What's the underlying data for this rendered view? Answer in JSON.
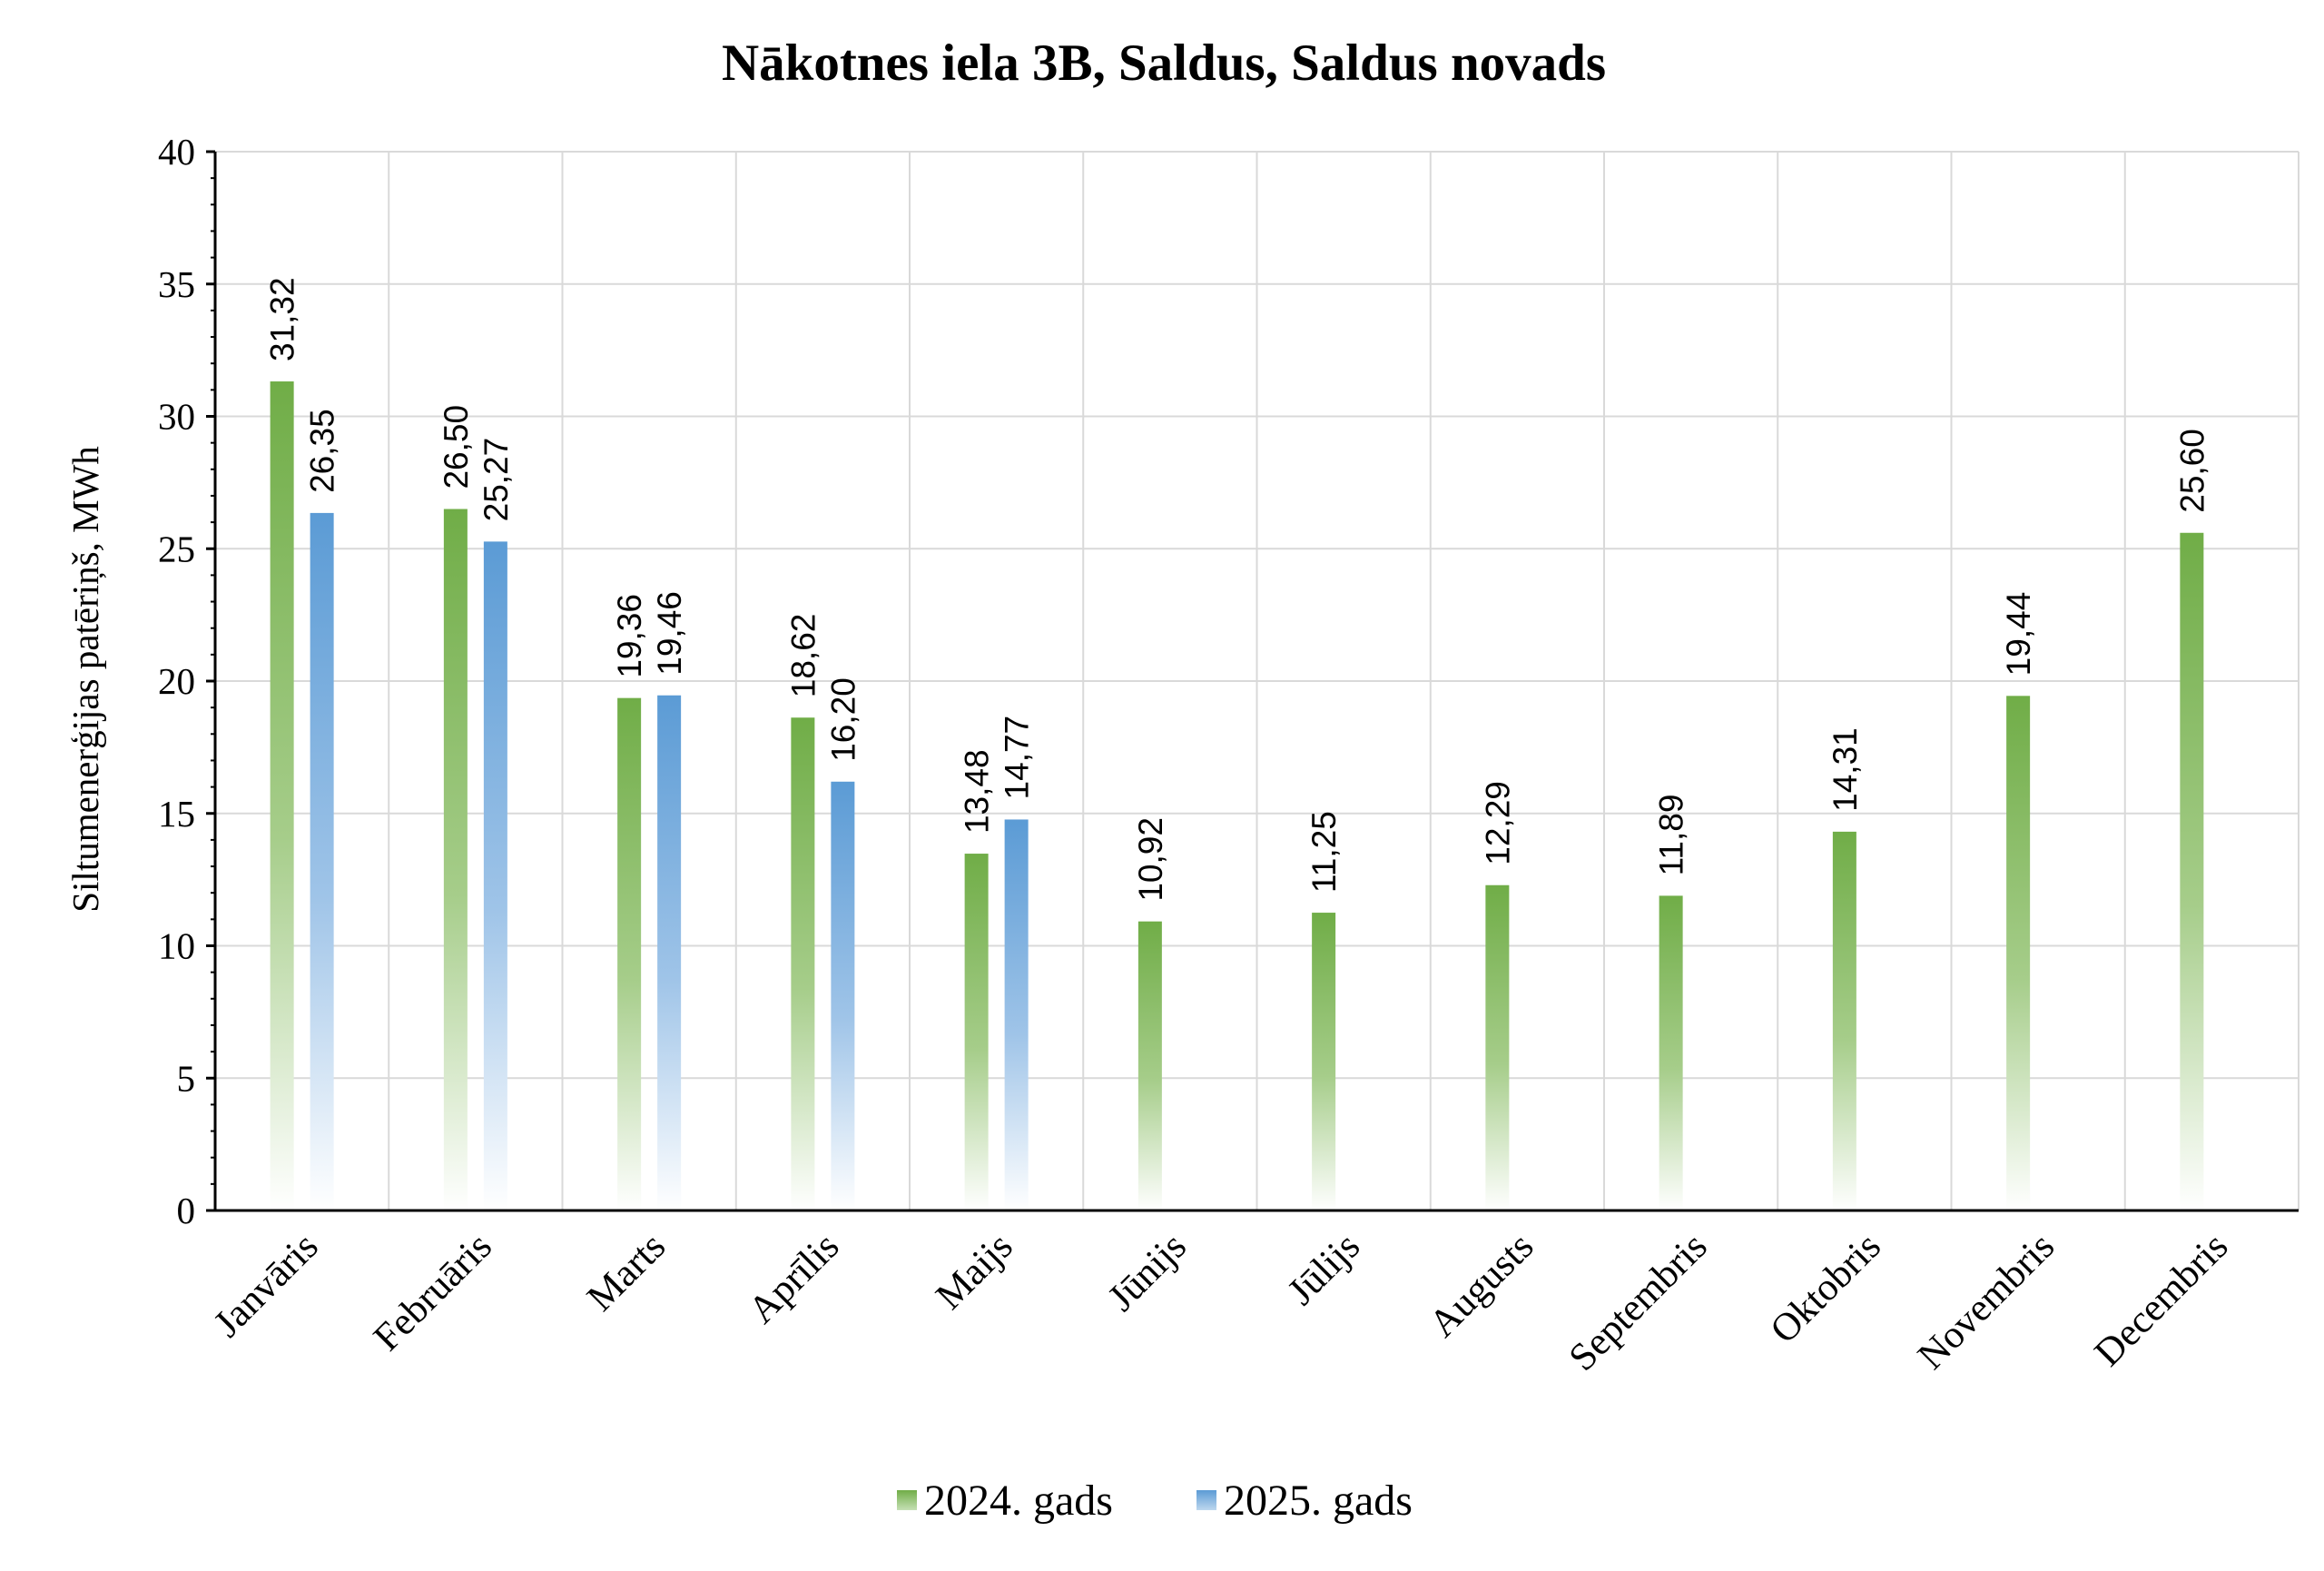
{
  "chart_data": {
    "type": "bar",
    "title": "Nākotnes iela 3B, Saldus, Saldus novads",
    "ylabel": "Siltumenerģijas patēriņš, MWh",
    "xlabel": "",
    "ylim": [
      0,
      40
    ],
    "yticks": [
      0,
      5,
      10,
      15,
      20,
      25,
      30,
      35,
      40
    ],
    "grid": true,
    "legend_position": "bottom",
    "categories": [
      "Janvāris",
      "Februāris",
      "Marts",
      "Aprīlis",
      "Maijs",
      "Jūnijs",
      "Jūlijs",
      "Augusts",
      "Septembris",
      "Oktobris",
      "Novembris",
      "Decembris"
    ],
    "series": [
      {
        "name": "2024. gads",
        "color": "#70ad47",
        "values": [
          31.32,
          26.5,
          19.36,
          18.62,
          13.48,
          10.92,
          11.25,
          12.29,
          11.89,
          14.31,
          19.44,
          25.6
        ],
        "labels": [
          "31,32",
          "26,50",
          "19,36",
          "18,62",
          "13,48",
          "10,92",
          "11,25",
          "12,29",
          "11,89",
          "14,31",
          "19,44",
          "25,60"
        ]
      },
      {
        "name": "2025. gads",
        "color": "#5b9bd5",
        "values": [
          26.35,
          25.27,
          19.46,
          16.2,
          14.77,
          null,
          null,
          null,
          null,
          null,
          null,
          null
        ],
        "labels": [
          "26,35",
          "25,27",
          "19,46",
          "16,20",
          "14,77",
          null,
          null,
          null,
          null,
          null,
          null,
          null
        ]
      }
    ]
  }
}
